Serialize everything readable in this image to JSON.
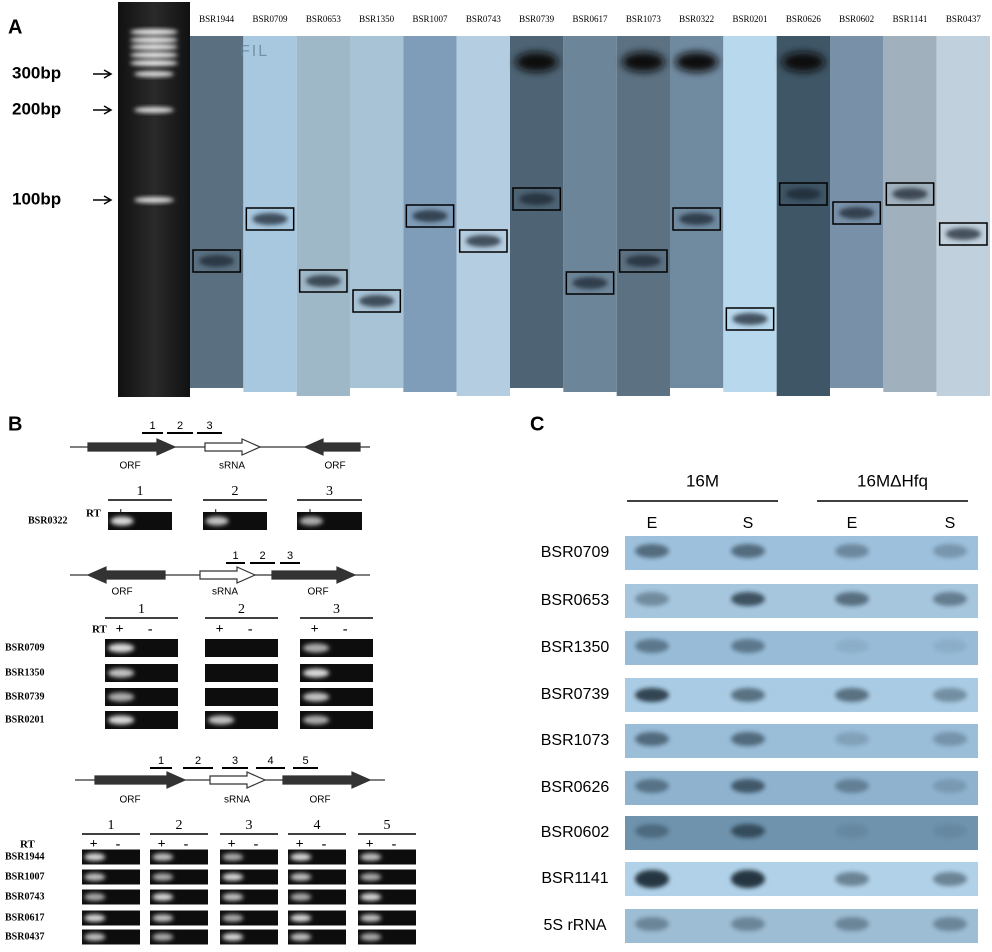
{
  "panel_a": {
    "label": "A",
    "ladder": [
      "300bp",
      "200bp",
      "100bp"
    ],
    "lane_annotation": "FIL",
    "lanes": [
      "BSR1944",
      "BSR0709",
      "BSR0653",
      "BSR1350",
      "BSR1007",
      "BSR0743",
      "BSR0739",
      "BSR0617",
      "BSR1073",
      "BSR0322",
      "BSR0201",
      "BSR0626",
      "BSR0602",
      "BSR1141",
      "BSR0437"
    ]
  },
  "panel_b": {
    "label": "B",
    "diagrams": [
      {
        "regions": [
          "1",
          "2",
          "3"
        ],
        "features": [
          "ORF",
          "sRNA",
          "ORF"
        ],
        "rt": "RT",
        "columns": [
          "1",
          "2",
          "3"
        ],
        "signs": [
          "+",
          "-"
        ],
        "rows": [
          "BSR0322"
        ]
      },
      {
        "regions": [
          "1",
          "2",
          "3"
        ],
        "features": [
          "ORF",
          "sRNA",
          "ORF"
        ],
        "rt": "RT",
        "columns": [
          "1",
          "2",
          "3"
        ],
        "signs": [
          "+",
          "-"
        ],
        "rows": [
          "BSR0709",
          "BSR1350",
          "BSR0739",
          "BSR0201"
        ]
      },
      {
        "regions": [
          "1",
          "2",
          "3",
          "4",
          "5"
        ],
        "features": [
          "ORF",
          "sRNA",
          "ORF"
        ],
        "rt": "RT",
        "columns": [
          "1",
          "2",
          "3",
          "4",
          "5"
        ],
        "signs": [
          "+",
          "-"
        ],
        "rows": [
          "BSR1944",
          "BSR1007",
          "BSR0743",
          "BSR0617",
          "BSR0437"
        ]
      }
    ]
  },
  "panel_c": {
    "label": "C",
    "strains": [
      "16M",
      "16MΔHfq"
    ],
    "phases": [
      "E",
      "S",
      "E",
      "S"
    ],
    "rows": [
      "BSR0709",
      "BSR0653",
      "BSR1350",
      "BSR0739",
      "BSR1073",
      "BSR0626",
      "BSR0602",
      "BSR1141",
      "5S rRNA"
    ]
  }
}
